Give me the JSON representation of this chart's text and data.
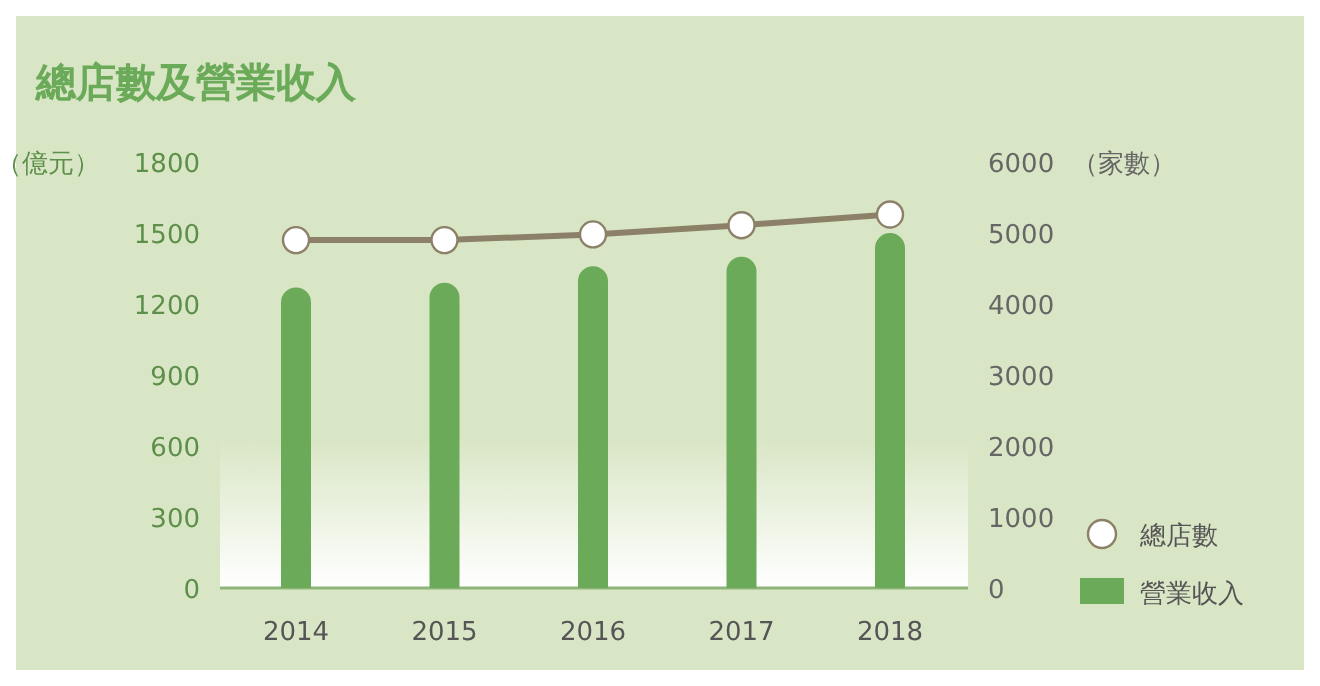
{
  "chart_data": {
    "type": "bar",
    "title": "總店數及營業收入",
    "ylabel": "（億元）",
    "y2label": "（家數）",
    "categories": [
      "2014",
      "2015",
      "2016",
      "2017",
      "2018"
    ],
    "series": [
      {
        "name": "營業收入",
        "color": "#6aaa58",
        "values": [
          1270,
          1290,
          1360,
          1400,
          1500
        ]
      },
      {
        "name": "總店數",
        "type": "line",
        "axis": "y2",
        "color": "#8c8068",
        "marker": "circle",
        "values": [
          4900,
          4900,
          4980,
          5110,
          5260
        ]
      }
    ],
    "ylim": [
      0,
      1800
    ],
    "yticks": [
      0,
      300,
      600,
      900,
      1200,
      1500,
      1800
    ],
    "y2lim": [
      0,
      6000
    ],
    "y2ticks": [
      0,
      1000,
      2000,
      3000,
      4000,
      5000,
      6000
    ],
    "grid": false,
    "legend": "bottom right"
  }
}
